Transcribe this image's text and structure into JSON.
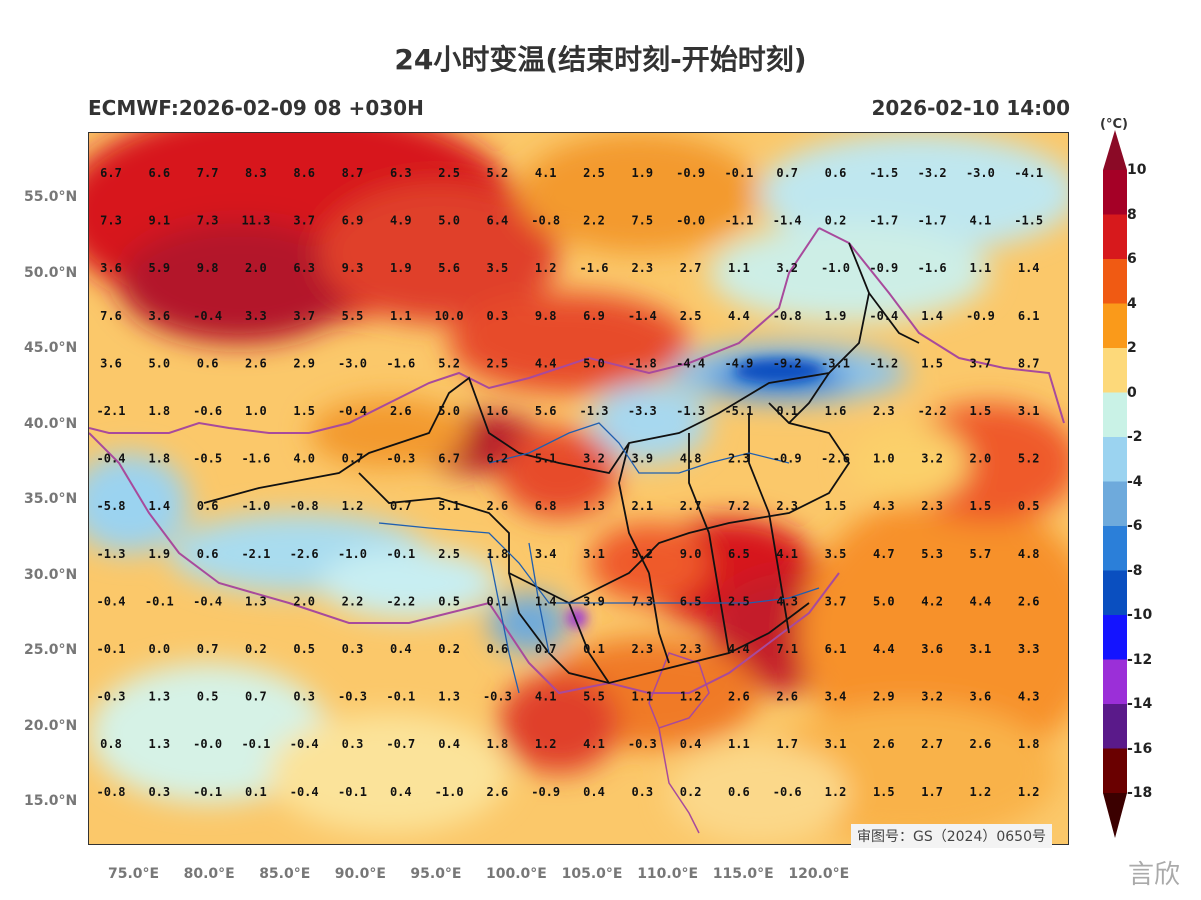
{
  "title": "24小时变温(结束时刻-开始时刻)",
  "subtitle_left": "ECMWF:2026-02-09 08 +030H",
  "subtitle_right": "2026-02-10 14:00",
  "colorbar": {
    "unit": "(°C)",
    "levels": [
      "10",
      "8",
      "6",
      "4",
      "2",
      "0",
      "-2",
      "-4",
      "-6",
      "-8",
      "-10",
      "-12",
      "-14",
      "-16",
      "-18"
    ],
    "colors": [
      "#a50026",
      "#d7191c",
      "#f05a13",
      "#fa9a1a",
      "#fdd97a",
      "#c9f2e6",
      "#9bd3f0",
      "#6eaadc",
      "#2b7fd9",
      "#0a4fc0",
      "#1414ff",
      "#9b2fd8",
      "#5a1a8a",
      "#6a0000"
    ]
  },
  "y_ticks": [
    "55.0°N",
    "50.0°N",
    "45.0°N",
    "40.0°N",
    "35.0°N",
    "30.0°N",
    "25.0°N",
    "20.0°N",
    "15.0°N"
  ],
  "x_ticks": [
    "75.0°E",
    "80.0°E",
    "85.0°E",
    "90.0°E",
    "95.0°E",
    "100.0°E",
    "105.0°E",
    "110.0°E",
    "115.0°E",
    "120.0°E"
  ],
  "approval": "审图号：GS（2024）0650号",
  "watermark": "言欣",
  "grid_values": [
    [
      "6.7",
      "6.6",
      "7.7",
      "8.3",
      "8.6",
      "8.7",
      "6.3",
      "2.5",
      "5.2",
      "4.1",
      "2.5",
      "1.9",
      "-0.9",
      "-0.1",
      "0.7",
      "0.6",
      "-1.5",
      "-3.2",
      "-3.0",
      "-4.1"
    ],
    [
      "7.3",
      "9.1",
      "7.3",
      "11.3",
      "3.7",
      "6.9",
      "4.9",
      "5.0",
      "6.4",
      "-0.8",
      "2.2",
      "7.5",
      "-0.0",
      "-1.1",
      "-1.4",
      "0.2",
      "-1.7",
      "-1.7",
      "4.1",
      "-1.5"
    ],
    [
      "3.6",
      "5.9",
      "9.8",
      "2.0",
      "6.3",
      "9.3",
      "1.9",
      "5.6",
      "3.5",
      "1.2",
      "-1.6",
      "2.3",
      "2.7",
      "1.1",
      "3.2",
      "-1.0",
      "-0.9",
      "-1.6",
      "1.1",
      "1.4"
    ],
    [
      "7.6",
      "3.6",
      "-0.4",
      "3.3",
      "3.7",
      "5.5",
      "1.1",
      "10.0",
      "0.3",
      "9.8",
      "6.9",
      "-1.4",
      "2.5",
      "4.4",
      "-0.8",
      "1.9",
      "-0.4",
      "1.4",
      "-0.9",
      "6.1"
    ],
    [
      "3.6",
      "5.0",
      "0.6",
      "2.6",
      "2.9",
      "-3.0",
      "-1.6",
      "5.2",
      "2.5",
      "4.4",
      "5.0",
      "-1.8",
      "-4.4",
      "-4.9",
      "-9.2",
      "-3.1",
      "-1.2",
      "1.5",
      "3.7",
      "8.7"
    ],
    [
      "-2.1",
      "1.8",
      "-0.6",
      "1.0",
      "1.5",
      "-0.4",
      "2.6",
      "5.0",
      "1.6",
      "5.6",
      "-1.3",
      "-3.3",
      "-1.3",
      "-5.1",
      "0.1",
      "1.6",
      "2.3",
      "-2.2",
      "1.5",
      "3.1"
    ],
    [
      "-0.4",
      "1.8",
      "-0.5",
      "-1.6",
      "4.0",
      "0.7",
      "-0.3",
      "6.7",
      "6.2",
      "5.1",
      "3.2",
      "3.9",
      "4.8",
      "2.3",
      "-0.9",
      "-2.6",
      "1.0",
      "3.2",
      "2.0",
      "5.2"
    ],
    [
      "-5.8",
      "1.4",
      "0.6",
      "-1.0",
      "-0.8",
      "1.2",
      "0.7",
      "5.1",
      "2.6",
      "6.8",
      "1.3",
      "2.1",
      "2.7",
      "7.2",
      "2.3",
      "1.5",
      "4.3",
      "2.3",
      "1.5",
      "0.5"
    ],
    [
      "-1.3",
      "1.9",
      "0.6",
      "-2.1",
      "-2.6",
      "-1.0",
      "-0.1",
      "2.5",
      "1.8",
      "3.4",
      "3.1",
      "5.2",
      "9.0",
      "6.5",
      "4.1",
      "3.5",
      "4.7",
      "5.3",
      "5.7",
      "4.8"
    ],
    [
      "-0.4",
      "-0.1",
      "-0.4",
      "1.3",
      "2.0",
      "2.2",
      "-2.2",
      "0.5",
      "0.1",
      "1.4",
      "3.9",
      "7.3",
      "6.5",
      "2.5",
      "4.3",
      "3.7",
      "5.0",
      "4.2",
      "4.4",
      "2.6"
    ],
    [
      "-0.1",
      "0.0",
      "0.7",
      "0.2",
      "0.5",
      "0.3",
      "0.4",
      "0.2",
      "0.6",
      "0.7",
      "0.1",
      "2.3",
      "2.3",
      "4.4",
      "7.1",
      "6.1",
      "4.4",
      "3.6",
      "3.1",
      "3.3"
    ],
    [
      "-0.3",
      "1.3",
      "0.5",
      "0.7",
      "0.3",
      "-0.3",
      "-0.1",
      "1.3",
      "-0.3",
      "4.1",
      "5.5",
      "1.1",
      "1.2",
      "2.6",
      "2.6",
      "3.4",
      "2.9",
      "3.2",
      "3.6",
      "4.3"
    ],
    [
      "0.8",
      "1.3",
      "-0.0",
      "-0.1",
      "-0.4",
      "0.3",
      "-0.7",
      "0.4",
      "1.8",
      "1.2",
      "4.1",
      "-0.3",
      "0.4",
      "1.1",
      "1.7",
      "3.1",
      "2.6",
      "2.7",
      "2.6",
      "1.8"
    ],
    [
      "-0.8",
      "0.3",
      "-0.1",
      "0.1",
      "-0.4",
      "-0.1",
      "0.4",
      "-1.0",
      "2.6",
      "-0.9",
      "0.4",
      "0.3",
      "0.2",
      "0.6",
      "-0.6",
      "1.2",
      "1.5",
      "1.7",
      "1.2",
      "1.2"
    ]
  ]
}
